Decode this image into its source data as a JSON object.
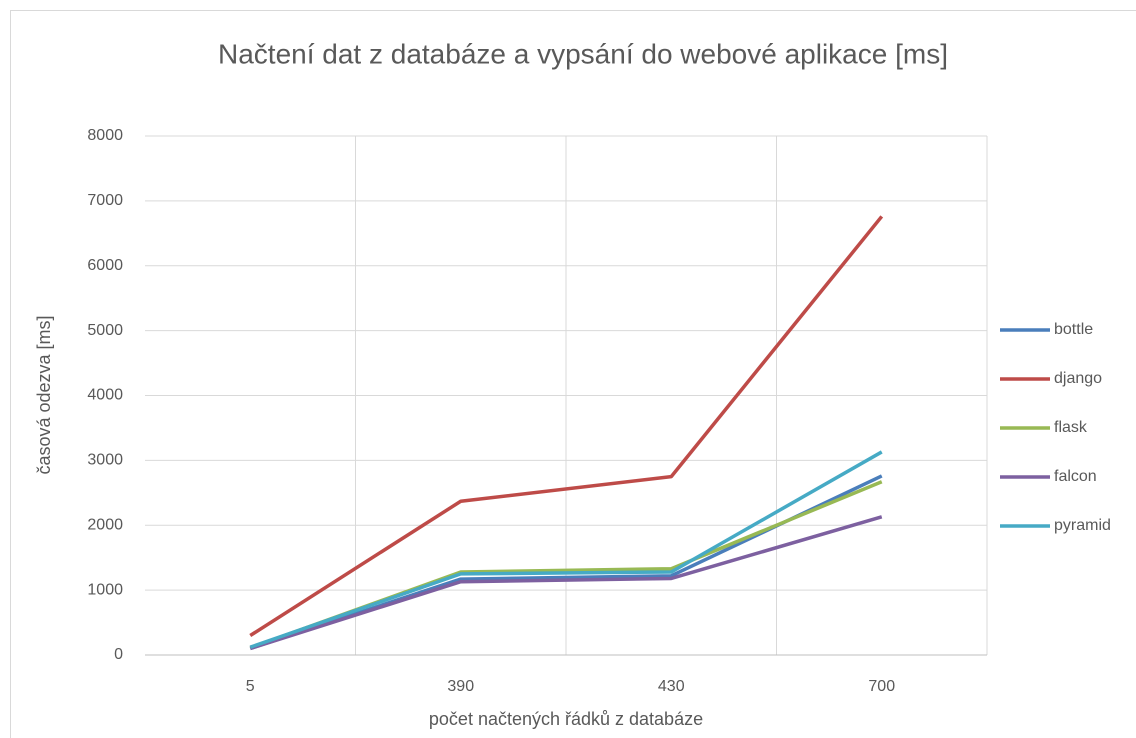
{
  "chart_data": {
    "type": "line",
    "title": "Načtení dat z databáze a vypsání do webové aplikace [ms]",
    "x_label": "počet načtených řádků z databáze",
    "y_label": "časová odezva [ms]",
    "categories": [
      "5",
      "390",
      "430",
      "700"
    ],
    "series": [
      {
        "name": "bottle",
        "color": "#4a7ebb",
        "values": [
          100,
          1170,
          1220,
          2760
        ]
      },
      {
        "name": "django",
        "color": "#be4b48",
        "values": [
          300,
          2370,
          2750,
          6760
        ]
      },
      {
        "name": "flask",
        "color": "#98b954",
        "values": [
          110,
          1280,
          1330,
          2670
        ]
      },
      {
        "name": "falcon",
        "color": "#7d60a0",
        "values": [
          100,
          1130,
          1180,
          2130
        ]
      },
      {
        "name": "pyramid",
        "color": "#46aac5",
        "values": [
          120,
          1250,
          1280,
          3130
        ]
      }
    ],
    "ylim": [
      0,
      8000
    ],
    "yticks": [
      0,
      1000,
      2000,
      3000,
      4000,
      5000,
      6000,
      7000,
      8000
    ],
    "grid": true,
    "legend": "right"
  }
}
